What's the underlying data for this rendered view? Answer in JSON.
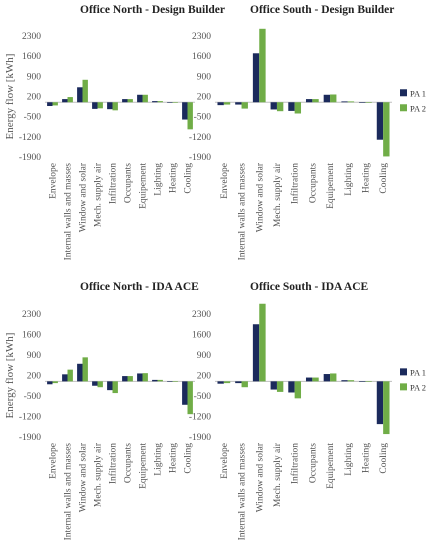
{
  "colors": {
    "pa1": "#1b2a5c",
    "pa2": "#70ad47"
  },
  "chart_data": [
    {
      "type": "bar",
      "title": "Office North - Design Builder",
      "ylabel": "Energy flow [kWh]",
      "ylim": [
        -1900,
        2300
      ],
      "yticks": [
        2300,
        1600,
        900,
        200,
        -500,
        -1200,
        -1900
      ],
      "categories": [
        "Envelope",
        "Internal walls and masses",
        "Window and solar",
        "Mech. supply air",
        "Infiltration",
        "Occupants",
        "Equipement",
        "Lighting",
        "Heating",
        "Cooling"
      ],
      "series": [
        {
          "name": "PA 1",
          "values": [
            -130,
            110,
            520,
            -230,
            -240,
            110,
            260,
            40,
            5,
            -600
          ]
        },
        {
          "name": "PA 2",
          "values": [
            -110,
            180,
            780,
            -210,
            -280,
            110,
            260,
            40,
            5,
            -940
          ]
        }
      ]
    },
    {
      "type": "bar",
      "title": "Office South - Design Builder",
      "ylabel": "",
      "ylim": [
        -1900,
        2300
      ],
      "yticks": [
        2300,
        1600,
        900,
        200,
        -500,
        -1200,
        -1900
      ],
      "categories": [
        "Envelope",
        "Internal walls and masses",
        "Window and solar",
        "Mech. supply air",
        "Infiltration",
        "Occupants",
        "Equipement",
        "Lighting",
        "Heating",
        "Cooling"
      ],
      "series": [
        {
          "name": "PA 1",
          "values": [
            -100,
            -80,
            1700,
            -250,
            -300,
            110,
            260,
            30,
            0,
            -1300
          ]
        },
        {
          "name": "PA 2",
          "values": [
            -80,
            -220,
            2550,
            -310,
            -390,
            110,
            270,
            30,
            0,
            -1880
          ]
        }
      ],
      "legend": "right"
    },
    {
      "type": "bar",
      "title": "Office North - IDA ACE",
      "ylabel": "Energy flow [kWh]",
      "ylim": [
        -1900,
        2300
      ],
      "yticks": [
        2300,
        1600,
        900,
        200,
        -500,
        -1200,
        -1900
      ],
      "categories": [
        "Envelope",
        "Internal walls and masses",
        "Window and solar",
        "Mech. supply air",
        "Infiltration",
        "Occupants",
        "Equipement",
        "Lighting",
        "Heating",
        "Cooling"
      ],
      "series": [
        {
          "name": "PA 1",
          "values": [
            -100,
            240,
            600,
            -150,
            -300,
            180,
            270,
            50,
            5,
            -800
          ]
        },
        {
          "name": "PA 2",
          "values": [
            -60,
            400,
            820,
            -200,
            -400,
            180,
            280,
            50,
            5,
            -1120
          ]
        }
      ]
    },
    {
      "type": "bar",
      "title": "Office South - IDA ACE",
      "ylabel": "",
      "ylim": [
        -1900,
        2300
      ],
      "yticks": [
        2300,
        1600,
        900,
        200,
        -500,
        -1200,
        -1900
      ],
      "categories": [
        "Envelope",
        "Internal walls and masses",
        "Window and solar",
        "Mech. supply air",
        "Infiltration",
        "Occupants",
        "Equipement",
        "Lighting",
        "Heating",
        "Cooling"
      ],
      "series": [
        {
          "name": "PA 1",
          "values": [
            -80,
            -60,
            1950,
            -280,
            -380,
            130,
            250,
            40,
            0,
            -1460
          ]
        },
        {
          "name": "PA 2",
          "values": [
            -60,
            -200,
            2650,
            -360,
            -580,
            130,
            270,
            40,
            0,
            -1800
          ]
        }
      ],
      "legend": "right"
    }
  ]
}
